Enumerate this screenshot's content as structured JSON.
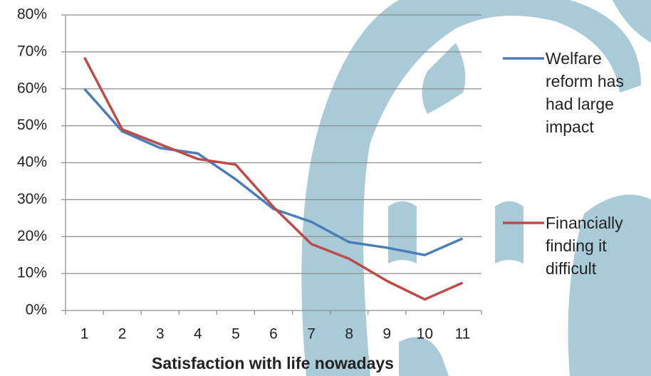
{
  "chart_data": {
    "type": "line",
    "x_label": "Satisfaction with life nowadays",
    "categories": [
      "1",
      "2",
      "3",
      "4",
      "5",
      "6",
      "7",
      "8",
      "9",
      "10",
      "11"
    ],
    "series": [
      {
        "name": "Welfare reform has had large impact",
        "color": "#4a7ebb",
        "values": [
          60,
          48.5,
          44,
          42.5,
          35.5,
          27.5,
          24,
          18.5,
          17,
          15,
          19.5
        ]
      },
      {
        "name": "Financially finding it difficult",
        "color": "#be4b48",
        "values": [
          68.5,
          49,
          45,
          41,
          39.5,
          28,
          18,
          14,
          8,
          3,
          7.5
        ]
      }
    ],
    "ylim": [
      0,
      80
    ],
    "yticks": [
      {
        "value": 0,
        "label": "0%"
      },
      {
        "value": 10,
        "label": "10%"
      },
      {
        "value": 20,
        "label": "20%"
      },
      {
        "value": 30,
        "label": "30%"
      },
      {
        "value": 40,
        "label": "40%"
      },
      {
        "value": 50,
        "label": "50%"
      },
      {
        "value": 60,
        "label": "60%"
      },
      {
        "value": 70,
        "label": "70%"
      },
      {
        "value": 80,
        "label": "80%"
      }
    ],
    "grid": true,
    "legend": "right"
  }
}
